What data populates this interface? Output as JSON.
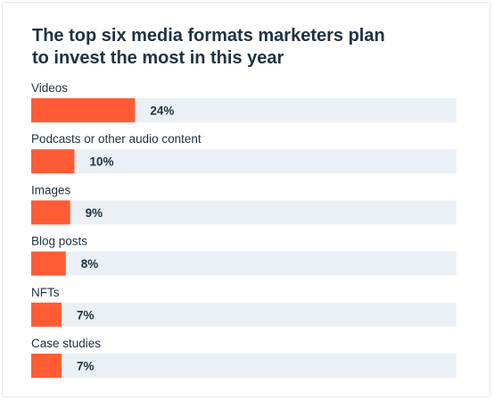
{
  "chart_data": {
    "type": "bar",
    "orientation": "horizontal",
    "title": "The top six media formats marketers plan to invest the most in this year",
    "categories": [
      "Videos",
      "Podcasts or other audio content",
      "Images",
      "Blog posts",
      "NFTs",
      "Case studies"
    ],
    "values": [
      24,
      10,
      9,
      8,
      7,
      7
    ],
    "value_labels": [
      "24%",
      "10%",
      "9%",
      "8%",
      "7%",
      "7%"
    ],
    "unit": "%",
    "xlim": [
      0,
      100
    ],
    "grid": false,
    "legend": "none",
    "colors": {
      "bar": "#ff5c35",
      "track": "#eaf0f6",
      "text": "#213343"
    }
  }
}
